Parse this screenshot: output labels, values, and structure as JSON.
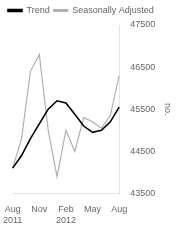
{
  "chart_data": {
    "type": "line",
    "ylabel": "no.",
    "categories": [
      "Aug",
      null,
      null,
      "Nov",
      null,
      null,
      "Feb",
      null,
      null,
      "May",
      null,
      null,
      "Aug"
    ],
    "annotations": [
      {
        "text": "2011",
        "x": 0
      },
      {
        "text": "2012",
        "x": 6
      }
    ],
    "series": [
      {
        "name": "Trend",
        "color": "#000000",
        "values": [
          44100,
          44400,
          44800,
          45150,
          45500,
          45700,
          45650,
          45380,
          45100,
          44950,
          45000,
          45200,
          45550
        ]
      },
      {
        "name": "Seasonally Adjusted",
        "color": "#b0b0b0",
        "values": [
          44100,
          44800,
          46400,
          46800,
          45000,
          43900,
          45000,
          44500,
          45300,
          45200,
          45050,
          45350,
          46300
        ]
      }
    ],
    "ylim": [
      43500,
      47500
    ],
    "yticks": [
      43500,
      44500,
      45500,
      46500,
      47500
    ],
    "grid": false,
    "legend": "upper left"
  }
}
